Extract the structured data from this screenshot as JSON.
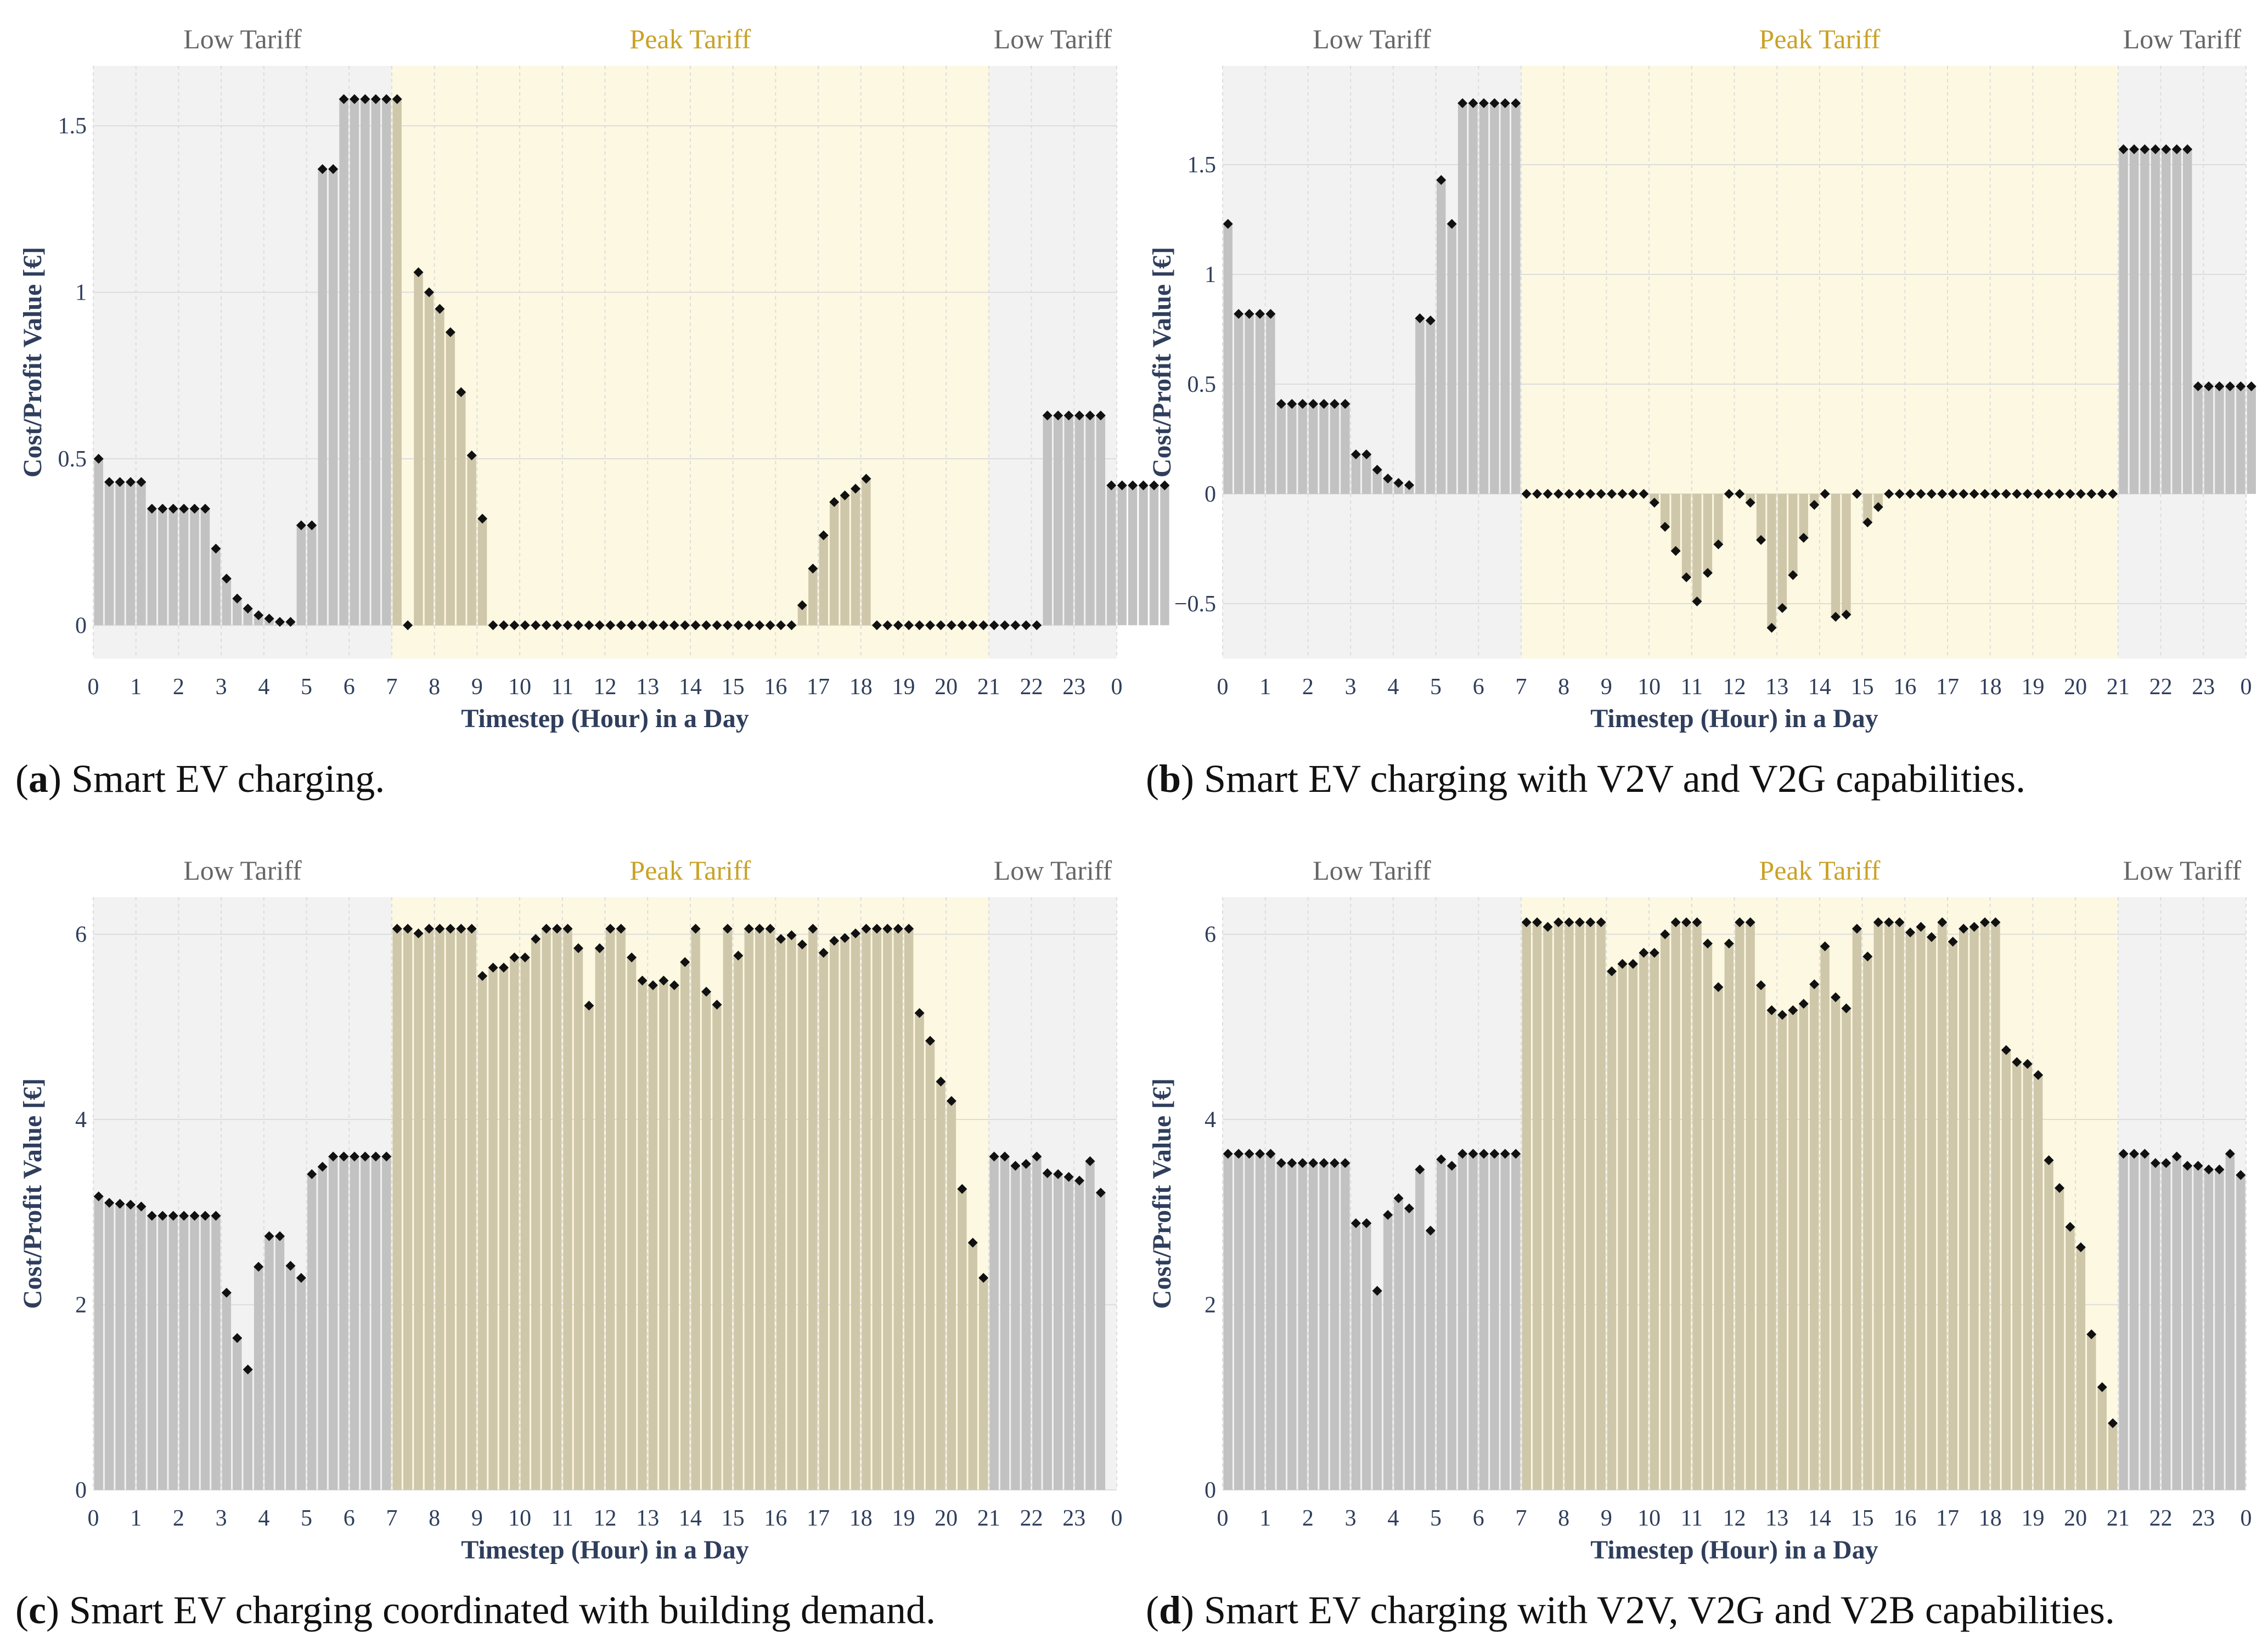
{
  "xaxis_label": "Timestep (Hour) in a Day",
  "yaxis_label": "Cost/Profit Value [€]",
  "region_labels": {
    "low": "Low Tariff",
    "peak": "Peak Tariff"
  },
  "colors": {
    "low_bg": "#f2f2f2",
    "peak_bg": "#fdf8e1",
    "bar_low": "#c2c2c2",
    "bar_peak": "#cfc7aa",
    "marker": "#111111",
    "peak_text": "#c9a227",
    "low_text": "#666666",
    "axis_text": "#2f3e5c"
  },
  "x_tick_labels": [
    "0",
    "1",
    "2",
    "3",
    "4",
    "5",
    "6",
    "7",
    "8",
    "9",
    "10",
    "11",
    "12",
    "13",
    "14",
    "15",
    "16",
    "17",
    "18",
    "19",
    "20",
    "21",
    "22",
    "23",
    "0"
  ],
  "panels": [
    {
      "caption_letter": "a",
      "caption_text": ") Smart EV charging."
    },
    {
      "caption_letter": "b",
      "caption_text": ") Smart EV charging with V2V and V2G capabilities."
    },
    {
      "caption_letter": "c",
      "caption_text": ") Smart EV charging coordinated with building demand."
    },
    {
      "caption_letter": "d",
      "caption_text": ") Smart EV charging with V2V, V2G and V2B capabilities."
    }
  ],
  "chart_data": [
    {
      "id": "a",
      "type": "bar",
      "title": "Smart EV charging.",
      "xlabel": "Timestep (Hour) in a Day",
      "ylabel": "Cost/Profit Value [€]",
      "ylim": [
        -0.1,
        1.68
      ],
      "yticks": [
        0,
        0.5,
        1,
        1.5
      ],
      "ytick_labels": [
        "0",
        "0.5",
        "1",
        "1.5"
      ],
      "timesteps": 96,
      "tariff_periods": [
        {
          "label": "Low Tariff",
          "start": 0,
          "end": 7
        },
        {
          "label": "Peak Tariff",
          "start": 7,
          "end": 21
        },
        {
          "label": "Low Tariff",
          "start": 21,
          "end": 24
        }
      ],
      "values": [
        0.5,
        0.43,
        0.43,
        0.43,
        0.43,
        0.35,
        0.35,
        0.35,
        0.35,
        0.35,
        0.35,
        0.23,
        0.14,
        0.08,
        0.05,
        0.03,
        0.02,
        0.01,
        0.01,
        0.3,
        0.3,
        1.37,
        1.37,
        1.58,
        1.58,
        1.58,
        1.58,
        1.58,
        1.58,
        0,
        1.06,
        1.0,
        0.95,
        0.88,
        0.7,
        0.51,
        0.32,
        0,
        0,
        0,
        0,
        0,
        0,
        0,
        0,
        0,
        0,
        0,
        0,
        0,
        0,
        0,
        0,
        0,
        0,
        0,
        0,
        0,
        0,
        0,
        0,
        0,
        0,
        0,
        0,
        0,
        0.06,
        0.17,
        0.27,
        0.37,
        0.39,
        0.41,
        0.44,
        0,
        0,
        0,
        0,
        0,
        0,
        0,
        0,
        0,
        0,
        0,
        0,
        0,
        0,
        0,
        0,
        0.63,
        0.63,
        0.63,
        0.63,
        0.63,
        0.63,
        0.42,
        0.42,
        0.42,
        0.42,
        0.42,
        0.42
      ]
    },
    {
      "id": "b",
      "type": "bar",
      "title": "Smart EV charging with V2V and V2G capabilities.",
      "xlabel": "Timestep (Hour) in a Day",
      "ylabel": "Cost/Profit Value [€]",
      "ylim": [
        -0.75,
        1.95
      ],
      "yticks": [
        -0.5,
        0,
        0.5,
        1,
        1.5
      ],
      "ytick_labels": [
        "−0.5",
        "0",
        "0.5",
        "1",
        "1.5"
      ],
      "timesteps": 96,
      "tariff_periods": [
        {
          "label": "Low Tariff",
          "start": 0,
          "end": 7
        },
        {
          "label": "Peak Tariff",
          "start": 7,
          "end": 21
        },
        {
          "label": "Low Tariff",
          "start": 21,
          "end": 24
        }
      ],
      "values": [
        1.23,
        0.82,
        0.82,
        0.82,
        0.82,
        0.41,
        0.41,
        0.41,
        0.41,
        0.41,
        0.41,
        0.41,
        0.18,
        0.18,
        0.11,
        0.07,
        0.05,
        0.04,
        0.8,
        0.79,
        1.43,
        1.23,
        1.78,
        1.78,
        1.78,
        1.78,
        1.78,
        1.78,
        0,
        0,
        0,
        0,
        0,
        0,
        0,
        0,
        0,
        0,
        0,
        0,
        -0.04,
        -0.15,
        -0.26,
        -0.38,
        -0.49,
        -0.36,
        -0.23,
        0,
        0,
        -0.04,
        -0.21,
        -0.61,
        -0.52,
        -0.37,
        -0.2,
        -0.05,
        0,
        -0.56,
        -0.55,
        0,
        -0.13,
        -0.06,
        0,
        0,
        0,
        0,
        0,
        0,
        0,
        0,
        0,
        0,
        0,
        0,
        0,
        0,
        0,
        0,
        0,
        0,
        0,
        0,
        0,
        0,
        1.57,
        1.57,
        1.57,
        1.57,
        1.57,
        1.57,
        1.57,
        0.49,
        0.49,
        0.49,
        0.49,
        0.49,
        0.49
      ]
    },
    {
      "id": "c",
      "type": "bar",
      "title": "Smart EV charging coordinated with building demand.",
      "xlabel": "Timestep (Hour) in a Day",
      "ylabel": "Cost/Profit Value [€]",
      "ylim": [
        0,
        6.4
      ],
      "yticks": [
        0,
        2,
        4,
        6
      ],
      "ytick_labels": [
        "0",
        "2",
        "4",
        "6"
      ],
      "timesteps": 96,
      "tariff_periods": [
        {
          "label": "Low Tariff",
          "start": 0,
          "end": 7
        },
        {
          "label": "Peak Tariff",
          "start": 7,
          "end": 21
        },
        {
          "label": "Low Tariff",
          "start": 21,
          "end": 24
        }
      ],
      "values": [
        3.17,
        3.1,
        3.09,
        3.08,
        3.06,
        2.96,
        2.96,
        2.96,
        2.96,
        2.96,
        2.96,
        2.96,
        2.13,
        1.64,
        1.3,
        2.41,
        2.74,
        2.74,
        2.42,
        2.29,
        3.41,
        3.49,
        3.6,
        3.6,
        3.6,
        3.6,
        3.6,
        3.6,
        6.06,
        6.06,
        6.01,
        6.06,
        6.06,
        6.06,
        6.06,
        6.06,
        5.55,
        5.64,
        5.64,
        5.75,
        5.75,
        5.95,
        6.06,
        6.06,
        6.06,
        5.85,
        5.23,
        5.85,
        6.06,
        6.06,
        5.75,
        5.5,
        5.45,
        5.5,
        5.45,
        5.7,
        6.06,
        5.38,
        5.24,
        6.06,
        5.77,
        6.06,
        6.06,
        6.06,
        5.95,
        5.99,
        5.89,
        6.06,
        5.8,
        5.93,
        5.96,
        6.01,
        6.06,
        6.06,
        6.06,
        6.06,
        6.06,
        5.15,
        4.85,
        4.41,
        4.2,
        3.25,
        2.67,
        2.29,
        3.6,
        3.6,
        3.5,
        3.52,
        3.6,
        3.42,
        3.41,
        3.38,
        3.34,
        3.55,
        3.21
      ]
    },
    {
      "id": "d",
      "type": "bar",
      "title": "Smart EV charging with V2V, V2G and V2B capabilities.",
      "xlabel": "Timestep (Hour) in a Day",
      "ylabel": "Cost/Profit Value [€]",
      "ylim": [
        0,
        6.4
      ],
      "yticks": [
        0,
        2,
        4,
        6
      ],
      "ytick_labels": [
        "0",
        "2",
        "4",
        "6"
      ],
      "timesteps": 96,
      "tariff_periods": [
        {
          "label": "Low Tariff",
          "start": 0,
          "end": 7
        },
        {
          "label": "Peak Tariff",
          "start": 7,
          "end": 21
        },
        {
          "label": "Low Tariff",
          "start": 21,
          "end": 24
        }
      ],
      "values": [
        3.63,
        3.63,
        3.63,
        3.63,
        3.63,
        3.53,
        3.53,
        3.53,
        3.53,
        3.53,
        3.53,
        3.53,
        2.88,
        2.88,
        2.15,
        2.97,
        3.15,
        3.04,
        3.46,
        2.8,
        3.57,
        3.5,
        3.63,
        3.63,
        3.63,
        3.63,
        3.63,
        3.63,
        6.13,
        6.13,
        6.08,
        6.13,
        6.13,
        6.13,
        6.13,
        6.13,
        5.6,
        5.68,
        5.68,
        5.8,
        5.8,
        6.0,
        6.13,
        6.13,
        6.13,
        5.9,
        5.43,
        5.9,
        6.13,
        6.13,
        5.45,
        5.18,
        5.13,
        5.18,
        5.25,
        5.46,
        5.87,
        5.32,
        5.2,
        6.06,
        5.76,
        6.13,
        6.13,
        6.13,
        6.02,
        6.08,
        5.97,
        6.13,
        5.92,
        6.06,
        6.08,
        6.13,
        6.13,
        4.75,
        4.62,
        4.6,
        4.48,
        3.56,
        3.26,
        2.84,
        2.62,
        1.68,
        1.11,
        0.72,
        3.63,
        3.63,
        3.63,
        3.53,
        3.53,
        3.6,
        3.5,
        3.5,
        3.46,
        3.46,
        3.63,
        3.4
      ]
    }
  ]
}
